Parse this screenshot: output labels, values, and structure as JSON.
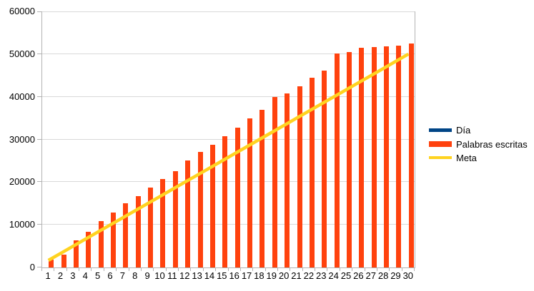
{
  "chart_data": {
    "type": "bar",
    "title": "",
    "xlabel": "",
    "ylabel": "",
    "categories": [
      "1",
      "2",
      "3",
      "4",
      "5",
      "6",
      "7",
      "8",
      "9",
      "10",
      "11",
      "12",
      "13",
      "14",
      "15",
      "16",
      "17",
      "18",
      "19",
      "20",
      "21",
      "22",
      "23",
      "24",
      "25",
      "26",
      "27",
      "28",
      "29",
      "30"
    ],
    "ylim": [
      0,
      60000
    ],
    "ytick_interval": 10000,
    "yticks": [
      0,
      10000,
      20000,
      30000,
      40000,
      50000,
      60000
    ],
    "grid": true,
    "legend_position": "right",
    "series": [
      {
        "name": "Día",
        "type": "bar",
        "color": "#004586",
        "values": []
      },
      {
        "name": "Palabras escritas",
        "type": "bar",
        "color": "#FF420E",
        "values": [
          1800,
          3000,
          6300,
          8400,
          10900,
          12800,
          15000,
          16700,
          18800,
          20700,
          22500,
          25000,
          27000,
          28700,
          30700,
          32700,
          35000,
          37000,
          40000,
          40800,
          42400,
          44400,
          46200,
          50100,
          50400,
          51400,
          51600,
          51800,
          52000,
          52400
        ]
      },
      {
        "name": "Meta",
        "type": "line",
        "color": "#FFD320",
        "values": [
          1667,
          3333,
          5000,
          6667,
          8333,
          10000,
          11667,
          13333,
          15000,
          16667,
          18333,
          20000,
          21667,
          23333,
          25000,
          26667,
          28333,
          30000,
          31667,
          33333,
          35000,
          36667,
          38333,
          40000,
          41667,
          43333,
          45000,
          46667,
          48333,
          50000
        ]
      }
    ],
    "colors": {
      "background": "#ffffff",
      "grid": "#d9d9d9",
      "axis": "#b3b3b3",
      "text": "#000000"
    }
  },
  "legend": {
    "items": [
      {
        "series": 0,
        "swatch_height": 5
      },
      {
        "series": 1,
        "swatch_height": 8
      },
      {
        "series": 2,
        "swatch_height": 4
      }
    ]
  }
}
